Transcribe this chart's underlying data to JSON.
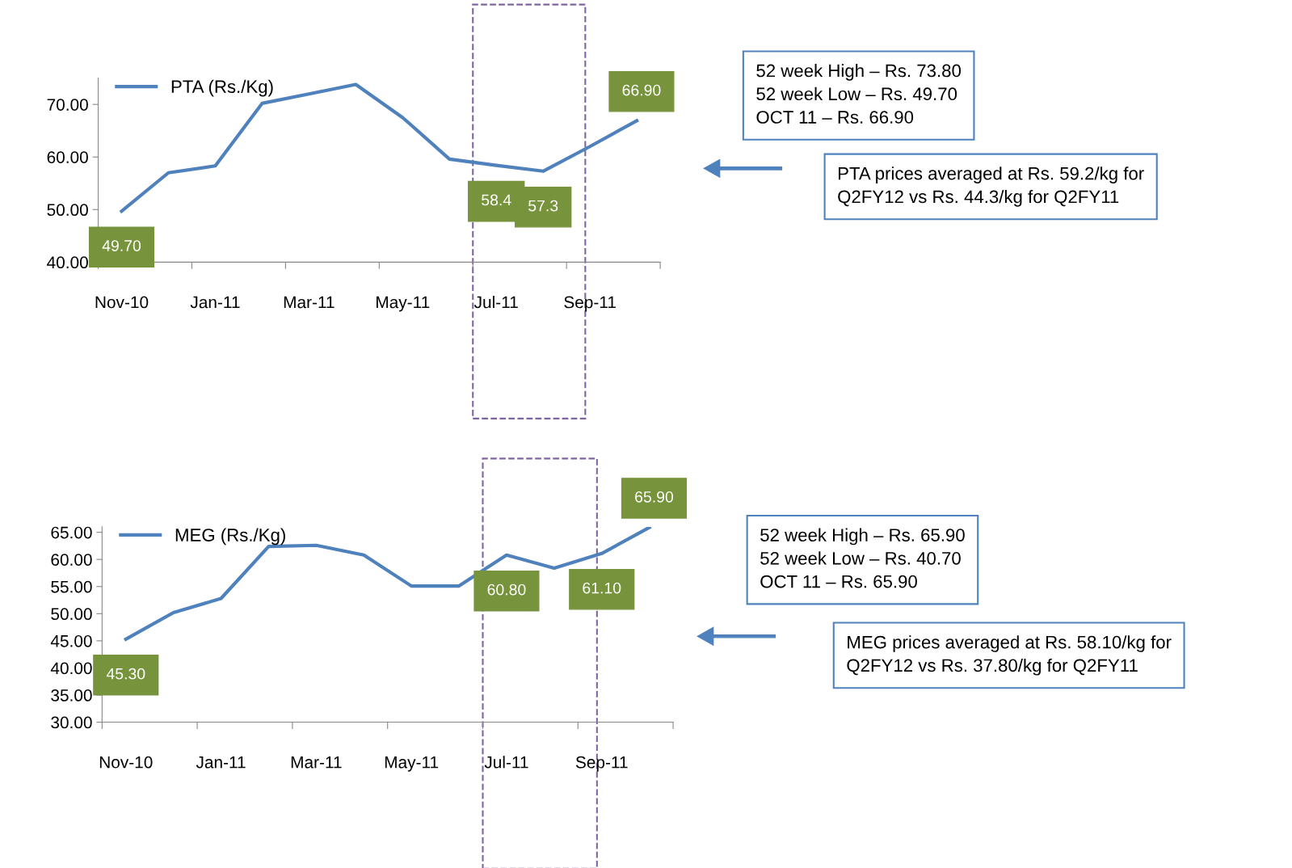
{
  "chart_data": [
    {
      "type": "line",
      "categories": [
        "Nov-10",
        null,
        "Jan-11",
        null,
        "Mar-11",
        null,
        "May-11",
        null,
        "Jul-11",
        null,
        "Sep-11",
        null
      ],
      "series": [
        {
          "name": "PTA (Rs./Kg)",
          "color": "#4f81bd",
          "values": [
            49.7,
            57.0,
            58.3,
            70.2,
            72.0,
            73.8,
            67.5,
            59.6,
            58.4,
            57.3,
            62.0,
            66.9
          ],
          "value_labels": [
            "49.70",
            null,
            null,
            null,
            null,
            null,
            null,
            null,
            "58.4",
            "57.3",
            null,
            "66.90"
          ]
        }
      ],
      "ylim": [
        40,
        75
      ],
      "yticks": [
        {
          "value": 40,
          "label": "40.00"
        },
        {
          "value": 50,
          "label": "50.00"
        },
        {
          "value": 60,
          "label": "60.00"
        },
        {
          "value": 70,
          "label": "70.00"
        }
      ],
      "legend": "top left",
      "grid": false,
      "marker": "none",
      "line_style": "solid",
      "annotations": [
        "52 week High – Rs. 73.80\n52 week Low – Rs. 49.70\nOCT 11 – Rs. 66.90",
        "PTA prices averaged at Rs. 59.2/kg for\nQ2FY12 vs Rs. 44.3/kg for Q2FY11"
      ]
    },
    {
      "type": "line",
      "categories": [
        "Nov-10",
        null,
        "Jan-11",
        null,
        "Mar-11",
        null,
        "May-11",
        null,
        "Jul-11",
        null,
        "Sep-11",
        null
      ],
      "series": [
        {
          "name": "MEG (Rs./Kg)",
          "color": "#4f81bd",
          "values": [
            45.3,
            50.2,
            52.8,
            62.4,
            62.6,
            60.8,
            55.1,
            55.1,
            60.8,
            58.4,
            61.1,
            65.9
          ],
          "value_labels": [
            "45.30",
            null,
            null,
            null,
            null,
            null,
            null,
            null,
            "60.80",
            null,
            "61.10",
            "65.90"
          ]
        }
      ],
      "ylim": [
        30,
        66
      ],
      "yticks": [
        {
          "value": 30,
          "label": "30.00"
        },
        {
          "value": 35,
          "label": "35.00"
        },
        {
          "value": 40,
          "label": "40.00"
        },
        {
          "value": 45,
          "label": "45.00"
        },
        {
          "value": 50,
          "label": "50.00"
        },
        {
          "value": 55,
          "label": "55.00"
        },
        {
          "value": 60,
          "label": "60.00"
        },
        {
          "value": 65,
          "label": "65.00"
        }
      ],
      "legend": "top left",
      "grid": false,
      "marker": "none",
      "line_style": "solid",
      "annotations": [
        "52 week High – Rs. 65.90\n52 week Low – Rs. 40.70\nOCT 11 – Rs. 65.90",
        "MEG prices averaged at Rs. 58.10/kg for\nQ2FY12 vs Rs. 37.80/kg for Q2FY11"
      ]
    }
  ]
}
